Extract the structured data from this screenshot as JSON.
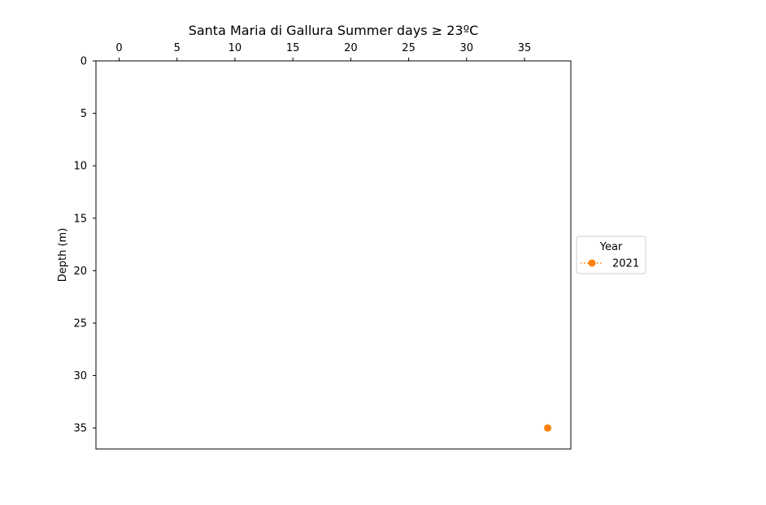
{
  "chart_data": {
    "type": "scatter",
    "title": "Santa Maria di Gallura Summer days ≥ 23ºC",
    "xlabel": "",
    "ylabel": "Depth (m)",
    "x_axis_position": "top",
    "y_axis_inverted": true,
    "xlim": [
      -2,
      39
    ],
    "ylim": [
      0,
      37
    ],
    "x_ticks": [
      0,
      5,
      10,
      15,
      20,
      25,
      30,
      35
    ],
    "y_ticks": [
      0,
      5,
      10,
      15,
      20,
      25,
      30,
      35
    ],
    "grid": false,
    "legend": {
      "title": "Year",
      "placement": "right-center-outside"
    },
    "series": [
      {
        "name": "2021",
        "color": "#ff7f0e",
        "marker": "circle",
        "line_style": "dotted",
        "points": [
          {
            "x": 37,
            "y": 35
          }
        ]
      }
    ]
  }
}
